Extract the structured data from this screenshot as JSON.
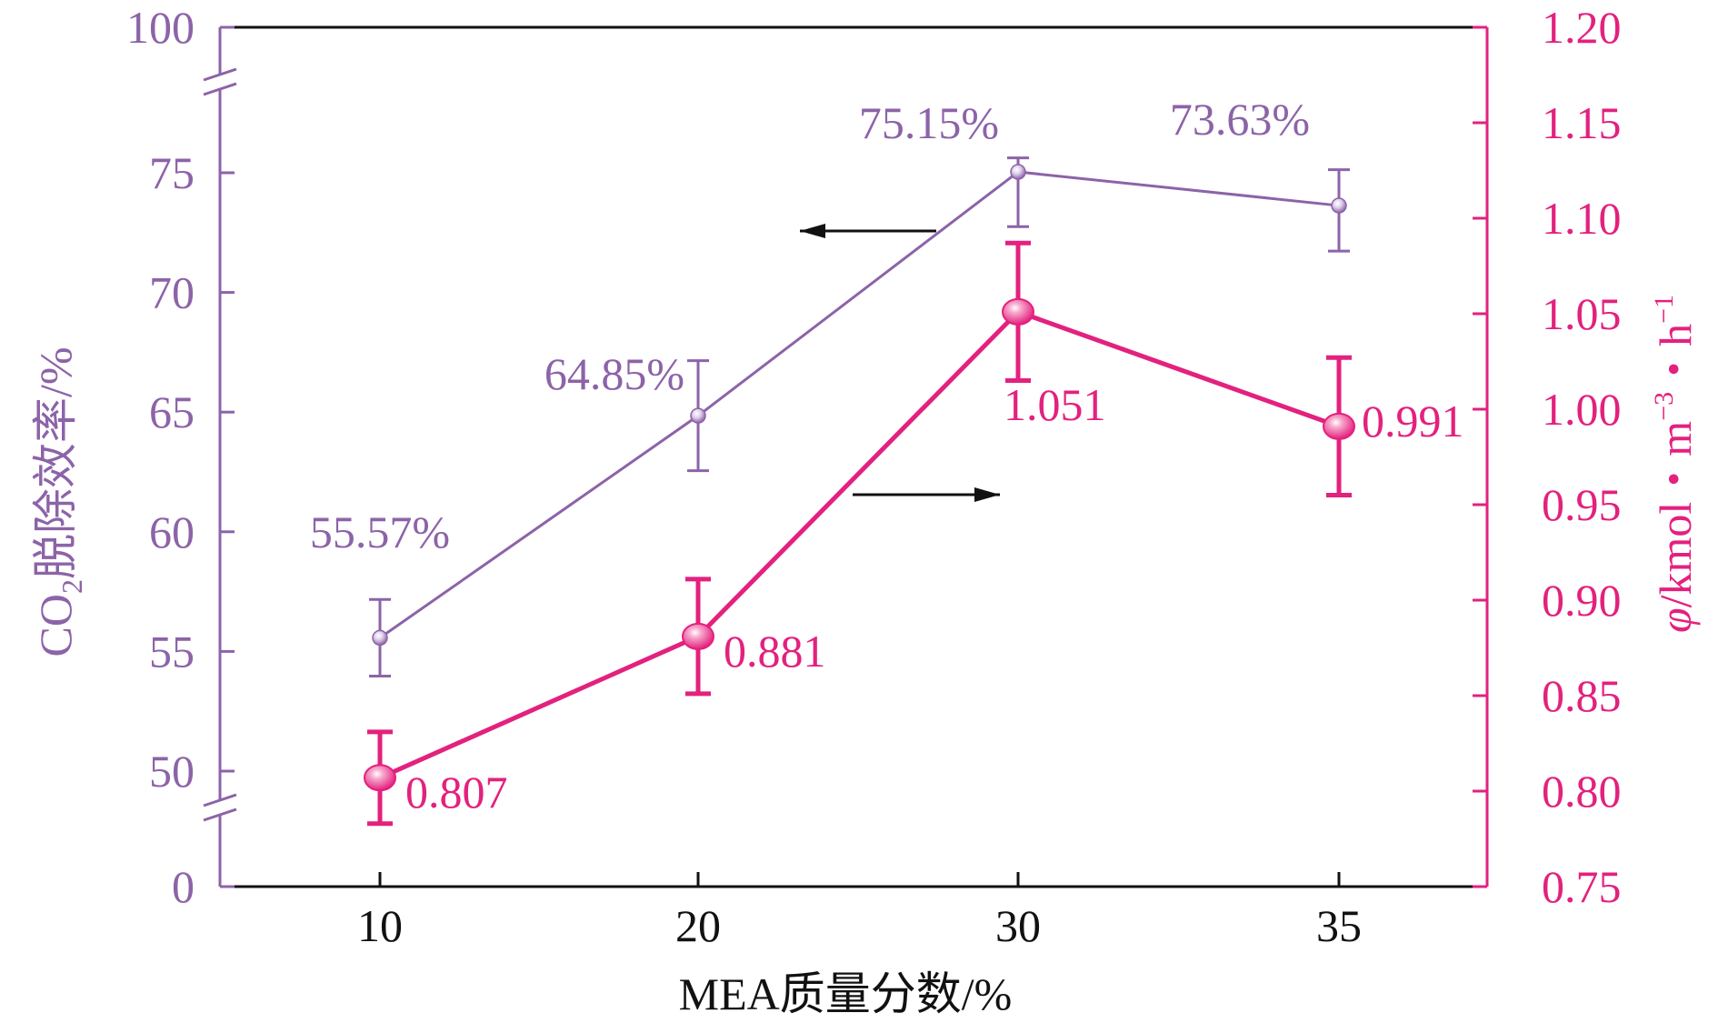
{
  "chart_data": {
    "type": "line",
    "categories": [
      "10",
      "20",
      "30",
      "35"
    ],
    "xlabel": "MEA质量分数/%",
    "ylabel_left": {
      "main": "CO",
      "sub": "2",
      "rest": "脱除效率/%"
    },
    "ylabel_right": {
      "phi": "φ",
      "rest1": "/kmol・m",
      "sup1": "−3",
      "rest2": "・h",
      "sup2": "−1"
    },
    "y_left": {
      "ticks": [
        "0",
        "50",
        "55",
        "60",
        "65",
        "70",
        "75",
        "100"
      ],
      "range_lower": [
        0,
        50
      ],
      "range_main": [
        50,
        75
      ],
      "range_upper": [
        75,
        100
      ],
      "axis_break": true
    },
    "y_right": {
      "ticks": [
        "0.75",
        "0.80",
        "0.85",
        "0.90",
        "0.95",
        "1.00",
        "1.05",
        "1.10",
        "1.15",
        "1.20"
      ],
      "range": [
        0.75,
        1.2
      ]
    },
    "series": [
      {
        "name": "CO2脱除效率",
        "axis": "left",
        "color": "#8c63a8",
        "values": [
          55.57,
          64.85,
          75.15,
          73.63
        ],
        "errors": [
          1.6,
          2.3,
          2.4,
          1.9
        ],
        "labels": [
          "55.57%",
          "64.85%",
          "75.15%",
          "73.63%"
        ]
      },
      {
        "name": "φ",
        "axis": "right",
        "color": "#e3217e",
        "values": [
          0.807,
          0.881,
          1.051,
          0.991
        ],
        "errors": [
          0.024,
          0.03,
          0.036,
          0.036
        ],
        "labels": [
          "0.807",
          "0.881",
          "1.051",
          "0.991"
        ]
      }
    ],
    "annotations": [
      {
        "type": "arrow",
        "direction": "left",
        "meaning": "purple series uses left axis"
      },
      {
        "type": "arrow",
        "direction": "right",
        "meaning": "pink series uses right axis"
      }
    ]
  }
}
